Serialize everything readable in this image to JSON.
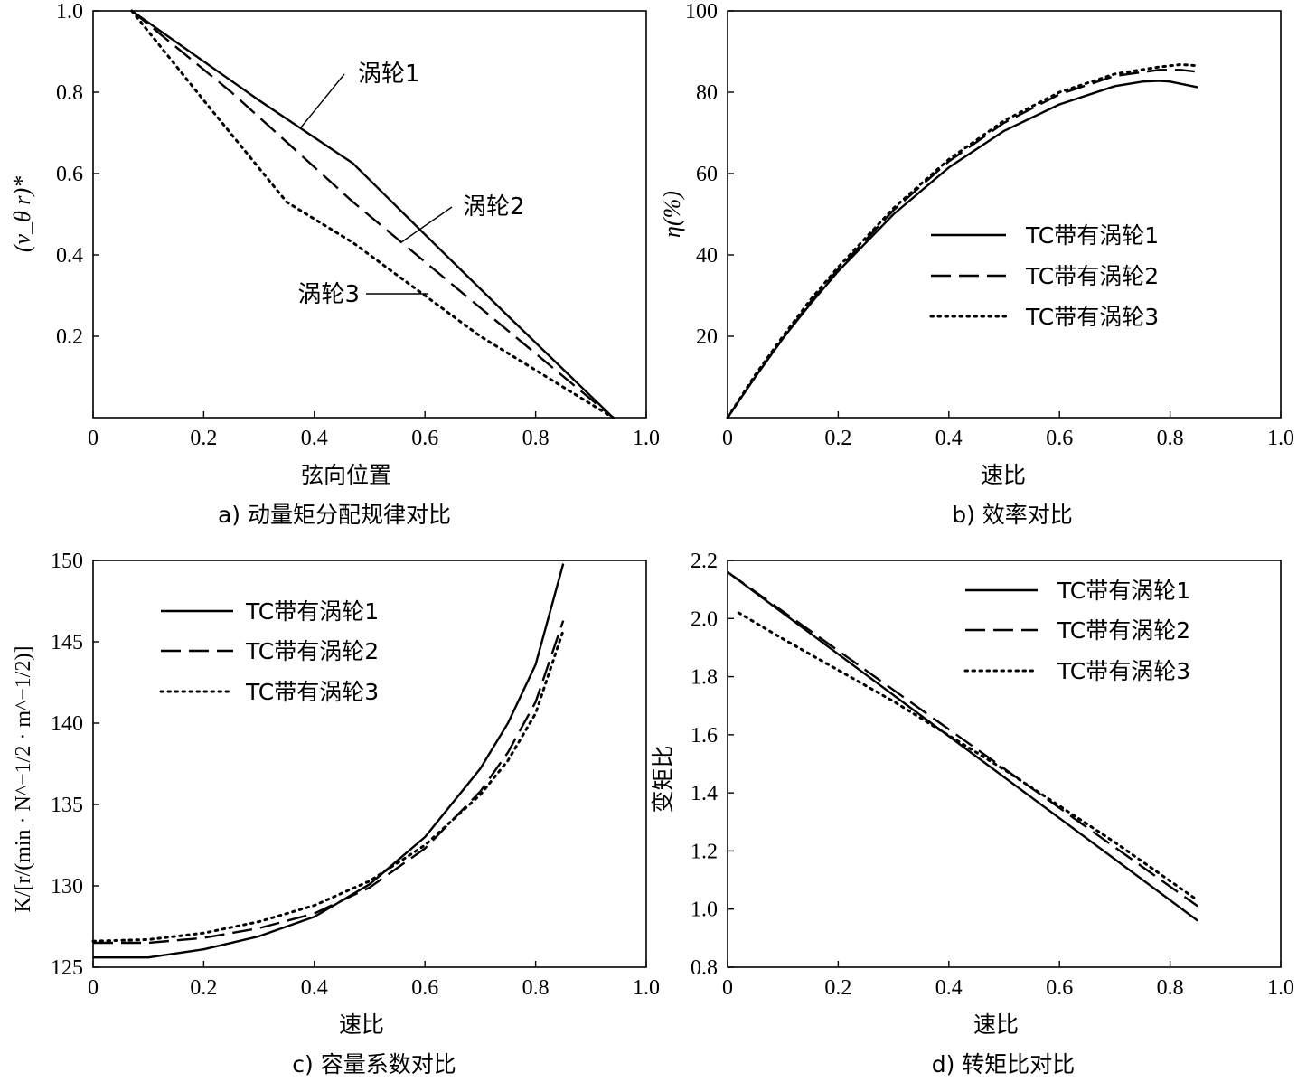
{
  "chart_data": [
    {
      "id": "a",
      "type": "line",
      "caption": "a) 动量矩分配规律对比",
      "xlabel": "弦向位置",
      "ylabel": "(v_θ r)*",
      "xlim": [
        0,
        1.0
      ],
      "ylim": [
        0,
        1.0
      ],
      "xticks": [
        0,
        0.2,
        0.4,
        0.6,
        0.8,
        1.0
      ],
      "xtick_labels": [
        "0",
        "0.2",
        "0.4",
        "0.6",
        "0.8",
        "1.0"
      ],
      "yticks": [
        0.2,
        0.4,
        0.6,
        0.8,
        1.0
      ],
      "ytick_labels": [
        "0.2",
        "0.4",
        "0.6",
        "0.8",
        "1.0"
      ],
      "grid": false,
      "legend": "none",
      "annotations": [
        {
          "text": "涡轮1",
          "series": 0
        },
        {
          "text": "涡轮2",
          "series": 1
        },
        {
          "text": "涡轮3",
          "series": 2
        }
      ],
      "series": [
        {
          "name": "涡轮1",
          "style": "solid",
          "points": [
            [
              0.07,
              1.0
            ],
            [
              0.3,
              0.78
            ],
            [
              0.47,
              0.625
            ],
            [
              0.6,
              0.45
            ],
            [
              0.75,
              0.25
            ],
            [
              0.94,
              0.0
            ]
          ]
        },
        {
          "name": "涡轮2",
          "style": "dashed",
          "points": [
            [
              0.07,
              1.0
            ],
            [
              0.25,
              0.8
            ],
            [
              0.47,
              0.53
            ],
            [
              0.7,
              0.27
            ],
            [
              0.94,
              0.0
            ]
          ]
        },
        {
          "name": "涡轮3",
          "style": "dotted",
          "points": [
            [
              0.07,
              1.0
            ],
            [
              0.2,
              0.78
            ],
            [
              0.35,
              0.53
            ],
            [
              0.47,
              0.43
            ],
            [
              0.7,
              0.2
            ],
            [
              0.94,
              0.0
            ]
          ]
        }
      ]
    },
    {
      "id": "b",
      "type": "line",
      "caption": "b) 效率对比",
      "xlabel": "速比",
      "ylabel": "η(%)",
      "xlim": [
        0,
        1.0
      ],
      "ylim": [
        0,
        100
      ],
      "xticks": [
        0,
        0.2,
        0.4,
        0.6,
        0.8,
        1.0
      ],
      "xtick_labels": [
        "0",
        "0.2",
        "0.4",
        "0.6",
        "0.8",
        "1.0"
      ],
      "yticks": [
        20,
        40,
        60,
        80,
        100
      ],
      "ytick_labels": [
        "20",
        "40",
        "60",
        "80",
        "100"
      ],
      "grid": false,
      "legend": "center-right",
      "series": [
        {
          "name": "TC带有涡轮1",
          "style": "solid",
          "points": [
            [
              0,
              0
            ],
            [
              0.05,
              10
            ],
            [
              0.1,
              19.5
            ],
            [
              0.15,
              28
            ],
            [
              0.2,
              36
            ],
            [
              0.3,
              50
            ],
            [
              0.4,
              61.5
            ],
            [
              0.5,
              70.5
            ],
            [
              0.6,
              77
            ],
            [
              0.7,
              81.5
            ],
            [
              0.75,
              82.6
            ],
            [
              0.78,
              82.8
            ],
            [
              0.8,
              82.6
            ],
            [
              0.85,
              81.2
            ]
          ]
        },
        {
          "name": "TC带有涡轮2",
          "style": "dashed",
          "points": [
            [
              0,
              0
            ],
            [
              0.05,
              10
            ],
            [
              0.1,
              19.5
            ],
            [
              0.15,
              28.5
            ],
            [
              0.2,
              36.5
            ],
            [
              0.3,
              51
            ],
            [
              0.4,
              63
            ],
            [
              0.5,
              72.5
            ],
            [
              0.6,
              79.5
            ],
            [
              0.7,
              84
            ],
            [
              0.78,
              85.5
            ],
            [
              0.82,
              85.5
            ],
            [
              0.85,
              85
            ]
          ]
        },
        {
          "name": "TC带有涡轮3",
          "style": "dotted",
          "points": [
            [
              0,
              0
            ],
            [
              0.05,
              10.5
            ],
            [
              0.1,
              20
            ],
            [
              0.15,
              29
            ],
            [
              0.2,
              37
            ],
            [
              0.3,
              51.5
            ],
            [
              0.4,
              63.5
            ],
            [
              0.5,
              73
            ],
            [
              0.6,
              80
            ],
            [
              0.7,
              84.5
            ],
            [
              0.78,
              86.2
            ],
            [
              0.82,
              86.8
            ],
            [
              0.85,
              86.5
            ]
          ]
        }
      ]
    },
    {
      "id": "c",
      "type": "line",
      "caption": "c) 容量系数对比",
      "xlabel": "速比",
      "ylabel": "K/[r/(min · N^−1/2 · m^−1/2)]",
      "xlim": [
        0,
        1.0
      ],
      "ylim": [
        125,
        150
      ],
      "xticks": [
        0,
        0.2,
        0.4,
        0.6,
        0.8,
        1.0
      ],
      "xtick_labels": [
        "0",
        "0.2",
        "0.4",
        "0.6",
        "0.8",
        "1.0"
      ],
      "yticks": [
        125,
        130,
        135,
        140,
        145,
        150
      ],
      "ytick_labels": [
        "125",
        "130",
        "135",
        "140",
        "145",
        "150"
      ],
      "grid": false,
      "legend": "top-left",
      "series": [
        {
          "name": "TC带有涡轮1",
          "style": "solid",
          "points": [
            [
              0,
              125.6
            ],
            [
              0.1,
              125.6
            ],
            [
              0.2,
              126.1
            ],
            [
              0.3,
              126.9
            ],
            [
              0.4,
              128.1
            ],
            [
              0.5,
              130.1
            ],
            [
              0.6,
              133.0
            ],
            [
              0.7,
              137.2
            ],
            [
              0.75,
              140.0
            ],
            [
              0.8,
              143.6
            ],
            [
              0.85,
              149.8
            ]
          ]
        },
        {
          "name": "TC带有涡轮2",
          "style": "dashed",
          "points": [
            [
              0,
              126.5
            ],
            [
              0.1,
              126.5
            ],
            [
              0.2,
              126.8
            ],
            [
              0.3,
              127.4
            ],
            [
              0.4,
              128.3
            ],
            [
              0.5,
              129.9
            ],
            [
              0.6,
              132.3
            ],
            [
              0.7,
              135.8
            ],
            [
              0.75,
              138.2
            ],
            [
              0.8,
              141.3
            ],
            [
              0.85,
              146.3
            ]
          ]
        },
        {
          "name": "TC带有涡轮3",
          "style": "dotted",
          "points": [
            [
              0,
              126.6
            ],
            [
              0.1,
              126.7
            ],
            [
              0.2,
              127.1
            ],
            [
              0.3,
              127.8
            ],
            [
              0.4,
              128.8
            ],
            [
              0.5,
              130.3
            ],
            [
              0.6,
              132.5
            ],
            [
              0.7,
              135.6
            ],
            [
              0.75,
              137.7
            ],
            [
              0.8,
              140.6
            ],
            [
              0.85,
              145.7
            ]
          ]
        }
      ]
    },
    {
      "id": "d",
      "type": "line",
      "caption": "d) 转矩比对比",
      "xlabel": "速比",
      "ylabel": "变矩比",
      "xlim": [
        0,
        1.0
      ],
      "ylim": [
        0.8,
        2.2
      ],
      "xticks": [
        0,
        0.2,
        0.4,
        0.6,
        0.8,
        1.0
      ],
      "xtick_labels": [
        "0",
        "0.2",
        "0.4",
        "0.6",
        "0.8",
        "1.0"
      ],
      "yticks": [
        0.8,
        1.0,
        1.2,
        1.4,
        1.6,
        1.8,
        2.0,
        2.2
      ],
      "ytick_labels": [
        "0.8",
        "1.0",
        "1.2",
        "1.4",
        "1.6",
        "1.8",
        "2.0",
        "2.2"
      ],
      "grid": false,
      "legend": "top-right",
      "series": [
        {
          "name": "TC带有涡轮1",
          "style": "solid",
          "points": [
            [
              0,
              2.16
            ],
            [
              0.85,
              0.96
            ]
          ]
        },
        {
          "name": "TC带有涡轮2",
          "style": "dashed",
          "points": [
            [
              0,
              2.16
            ],
            [
              0.85,
              1.01
            ]
          ]
        },
        {
          "name": "TC带有涡轮3",
          "style": "dotted",
          "points": [
            [
              0.02,
              2.02
            ],
            [
              0.1,
              1.93
            ],
            [
              0.3,
              1.715
            ],
            [
              0.5,
              1.48
            ],
            [
              0.7,
              1.23
            ],
            [
              0.85,
              1.03
            ]
          ]
        }
      ]
    }
  ]
}
